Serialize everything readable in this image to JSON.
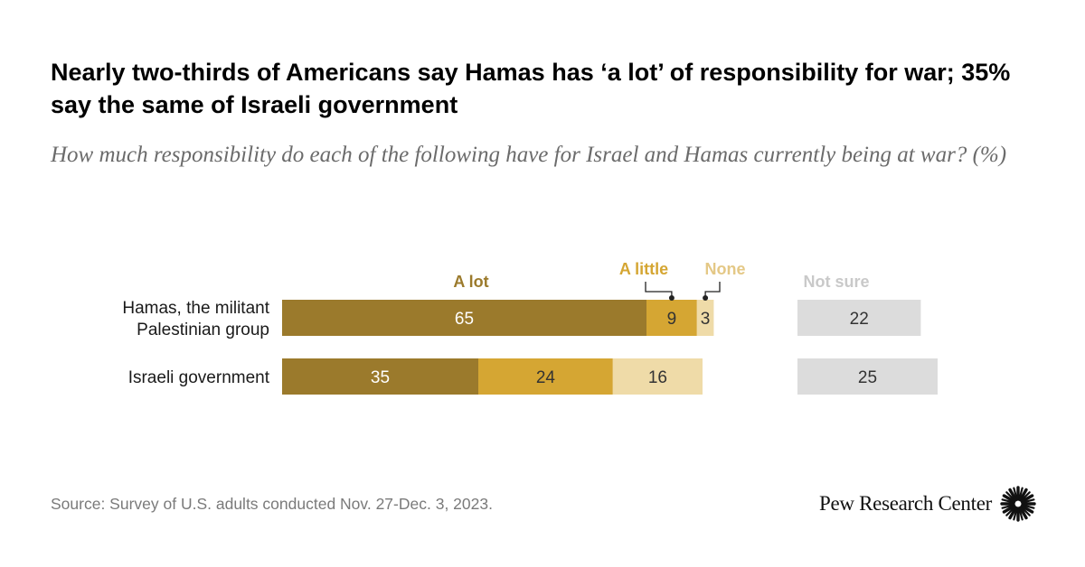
{
  "header": {
    "title": "Nearly two-thirds of Americans say Hamas has ‘a lot’ of responsibility for war; 35% say the same of Israeli government",
    "subtitle": "How much responsibility do each of the following have for Israel and Hamas currently being at war? (%)"
  },
  "chart_data": {
    "type": "bar",
    "orientation": "horizontal",
    "stacked": true,
    "categories": [
      "Hamas, the militant Palestinian group",
      "Israeli government"
    ],
    "category_lines": [
      [
        "Hamas, the militant",
        "Palestinian group"
      ],
      [
        "Israeli government"
      ]
    ],
    "series": [
      {
        "name": "A lot",
        "values": [
          65,
          35
        ],
        "color": "#9b7a2c",
        "label_color": "#ffffff"
      },
      {
        "name": "A little",
        "values": [
          9,
          24
        ],
        "color": "#d5a633",
        "label_color": "#333333"
      },
      {
        "name": "None",
        "values": [
          3,
          16
        ],
        "color": "#efdba8",
        "label_color": "#333333"
      }
    ],
    "separate_series": {
      "name": "Not sure",
      "values": [
        22,
        25
      ],
      "color": "#dcdcdc",
      "label_color": "#333333"
    },
    "legend_label_colors": {
      "A lot": "#9b7a2c",
      "A little": "#d5a633",
      "None": "#e4c886",
      "Not sure": "#c9c9c9"
    },
    "grid": false,
    "legend": "labels above bars"
  },
  "footer": {
    "source": "Source: Survey of U.S. adults conducted Nov. 27-Dec. 3, 2023.",
    "brand": "Pew Research Center"
  }
}
